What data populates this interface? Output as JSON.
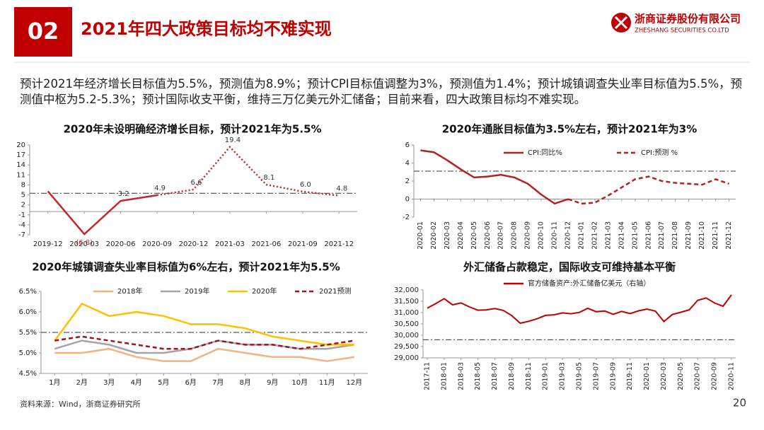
{
  "header": {
    "number": "02",
    "title": "2021年四大政策目标均不难实现"
  },
  "logo": {
    "name": "浙商证券股份有限公司",
    "name_en": "ZHESHANG SECURITIES CO.LTD"
  },
  "summary": "预计2021年经济增长目标值为5.5%，预测值为8.9%；预计CPI目标值调整为3%，预测值为1.4%；预计城镇调查失业率目标值为5.5%，预测值中枢为5.2-5.3%；预计国际收支平衡，维持三万亿美元外汇储备；目前来看，四大政策目标均不难实现。",
  "chart_data": [
    {
      "type": "line",
      "title": "2020年未设明确经济增长目标，预计2021年为5.5%",
      "categories": [
        "2019-12",
        "2020-03",
        "2020-06",
        "2020-09",
        "2020-12",
        "2021-03",
        "2021-06",
        "2021-09",
        "2021-12"
      ],
      "series": [
        {
          "color": "#c0282d",
          "style": "solid",
          "values": [
            6.1,
            -6.8,
            3.2,
            4.9,
            null,
            null,
            null,
            null,
            null
          ],
          "value_labels": [
            null,
            "(6.8)",
            "3.2",
            "4.9",
            null,
            null,
            null,
            null,
            null
          ]
        },
        {
          "color": "#c0282d",
          "style": "dotted",
          "values": [
            null,
            null,
            null,
            4.9,
            6.6,
            19.4,
            8.1,
            6.0,
            4.8
          ],
          "value_labels": [
            null,
            null,
            null,
            null,
            "6.6",
            "19.4",
            "8.1",
            "6.0",
            "4.8"
          ]
        }
      ],
      "ylim": [
        -7,
        20
      ],
      "yticks": [
        -7,
        -4,
        -1,
        2,
        5,
        8,
        11,
        14,
        17,
        20
      ],
      "reference_line": 5.5
    },
    {
      "type": "line",
      "title": "2020年通胀目标值为3.5%左右，预计2021年为3%",
      "categories": [
        "2020-01",
        "2020-02",
        "2020-03",
        "2020-04",
        "2020-05",
        "2020-06",
        "2020-07",
        "2020-08",
        "2020-09",
        "2020-10",
        "2020-11",
        "2020-12",
        "2021-01",
        "2021-02",
        "2021-03",
        "2021-04",
        "2021-05",
        "2021-06",
        "2021-07",
        "2021-08",
        "2021-09",
        "2021-10",
        "2021-11",
        "2021-12"
      ],
      "series": [
        {
          "name": "CPI:同比%",
          "color": "#b22222",
          "style": "solid",
          "values": [
            5.4,
            5.2,
            4.3,
            3.3,
            2.4,
            2.5,
            2.7,
            2.4,
            1.7,
            0.5,
            -0.5,
            0.0,
            null,
            null,
            null,
            null,
            null,
            null,
            null,
            null,
            null,
            null,
            null,
            null
          ]
        },
        {
          "name": "CPI:预测 %",
          "color": "#b22222",
          "style": "dashed",
          "values": [
            null,
            null,
            null,
            null,
            null,
            null,
            null,
            null,
            null,
            null,
            null,
            0.0,
            -0.5,
            -0.4,
            0.4,
            1.3,
            2.2,
            2.5,
            2.0,
            1.8,
            1.7,
            1.6,
            2.2,
            1.7
          ]
        }
      ],
      "ylim": [
        -2,
        6
      ],
      "yticks": [
        -2,
        0,
        2,
        4,
        6
      ],
      "reference_line": 3.1,
      "legend": "top"
    },
    {
      "type": "line",
      "title": "2020年城镇调查失业率目标值为6%左右，预计2021年为5.5%",
      "categories": [
        "1月",
        "2月",
        "3月",
        "4月",
        "5月",
        "6月",
        "7月",
        "8月",
        "9月",
        "10月",
        "11月",
        "12月"
      ],
      "series": [
        {
          "name": "2018年",
          "color": "#f4b183",
          "style": "solid",
          "values": [
            5.0,
            5.0,
            5.1,
            4.9,
            4.8,
            4.8,
            5.1,
            5.0,
            4.9,
            4.9,
            4.8,
            4.9
          ]
        },
        {
          "name": "2019年",
          "color": "#a5a5a5",
          "style": "solid",
          "values": [
            5.1,
            5.3,
            5.2,
            5.0,
            5.0,
            5.1,
            5.3,
            5.2,
            5.2,
            5.1,
            5.1,
            5.2
          ]
        },
        {
          "name": "2020年",
          "color": "#ffc000",
          "style": "solid",
          "values": [
            5.3,
            6.2,
            5.9,
            6.0,
            5.9,
            5.7,
            5.7,
            5.6,
            5.4,
            5.3,
            5.2,
            5.2
          ]
        },
        {
          "name": "2021预测",
          "color": "#a0141e",
          "style": "dashed",
          "values": [
            5.3,
            5.4,
            5.3,
            5.2,
            5.1,
            5.1,
            5.3,
            5.2,
            5.2,
            5.1,
            5.2,
            5.3
          ]
        }
      ],
      "ylim": [
        4.5,
        6.5
      ],
      "yticks": [
        {
          "value": 4.5,
          "label": "4.5%"
        },
        {
          "value": 5.0,
          "label": "5.0%"
        },
        {
          "value": 5.5,
          "label": "5.5%"
        },
        {
          "value": 6.0,
          "label": "6.0%"
        },
        {
          "value": 6.5,
          "label": "6.5%"
        }
      ],
      "reference_line": 5.5,
      "legend": "top"
    },
    {
      "type": "line",
      "title": "外汇储备占款稳定，国际收支可维持基本平衡",
      "categories": [
        "2017-11",
        null,
        "2018-01",
        null,
        "2018-03",
        null,
        "2018-05",
        null,
        "2018-07",
        null,
        "2018-09",
        null,
        "2018-11",
        null,
        "2019-01",
        null,
        "2019-03",
        null,
        "2019-05",
        null,
        "2019-07",
        null,
        "2019-09",
        null,
        "2019-11",
        null,
        "2020-01",
        null,
        "2020-03",
        null,
        "2020-05",
        null,
        "2020-07",
        null,
        "2020-09",
        null,
        "2020-11"
      ],
      "series": [
        {
          "name": "官方储备资产:外汇储备亿美元（右轴）",
          "color": "#c00000",
          "style": "solid",
          "values": [
            31193,
            31399,
            31615,
            31345,
            31428,
            31249,
            31106,
            31121,
            31179,
            31097,
            30870,
            30531,
            30617,
            30727,
            30879,
            30902,
            30988,
            30950,
            31010,
            31192,
            31037,
            31072,
            30924,
            31052,
            30956,
            31079,
            31155,
            31067,
            30606,
            30915,
            31017,
            31123,
            31544,
            31646,
            31426,
            31280,
            31785
          ]
        }
      ],
      "ylim": [
        29000,
        32000
      ],
      "yticks": [
        {
          "value": 29000,
          "label": "29,000"
        },
        {
          "value": 29500,
          "label": "29,500"
        },
        {
          "value": 30000,
          "label": "30,000"
        },
        {
          "value": 30500,
          "label": "30,500"
        },
        {
          "value": 31000,
          "label": "31,000"
        },
        {
          "value": 31500,
          "label": "31,500"
        },
        {
          "value": 32000,
          "label": "32,000"
        }
      ],
      "reference_line": 29800,
      "legend": "top"
    }
  ],
  "footer": {
    "source": "资料来源：Wind，浙商证券研究所",
    "page": 20
  }
}
